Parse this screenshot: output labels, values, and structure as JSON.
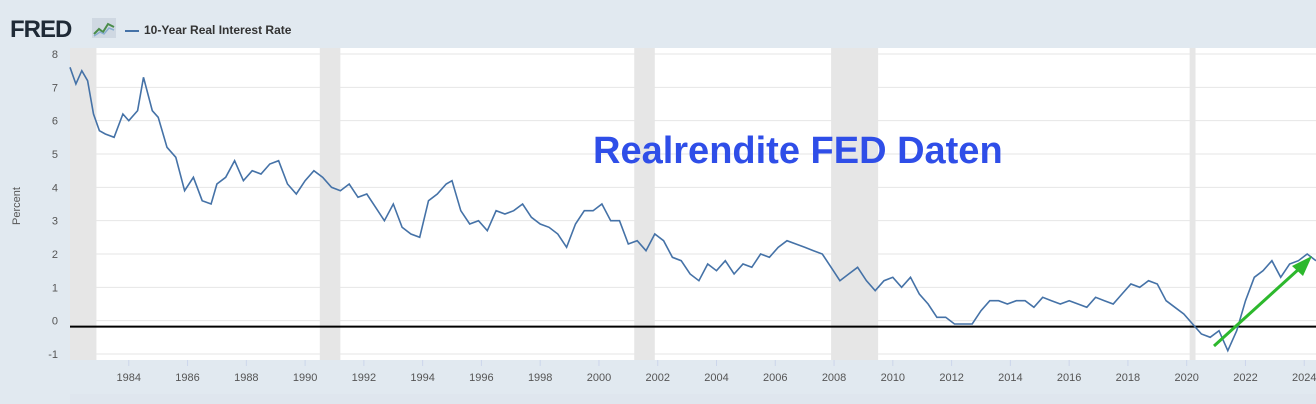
{
  "header": {
    "logo_text": "FRED",
    "logo_icon": "fred-chart-icon",
    "series_label": "10-Year Real Interest Rate"
  },
  "annotation": {
    "text": "Realrendite FED Daten",
    "color": "#2f4ee8",
    "arrow_color": "#2db82d"
  },
  "colors": {
    "line": "#4572a7",
    "recession": "#e6e6e6",
    "zero_line": "#000000"
  },
  "chart_data": {
    "type": "line",
    "title": "",
    "ylabel": "Percent",
    "xlabel": "",
    "ylim": [
      -1,
      8
    ],
    "xlim": [
      1982.0,
      2024.4
    ],
    "y_ticks": [
      "-1",
      "0",
      "1",
      "2",
      "3",
      "4",
      "5",
      "6",
      "7",
      "8"
    ],
    "x_ticks": [
      "1984",
      "1986",
      "1988",
      "1990",
      "1992",
      "1994",
      "1996",
      "1998",
      "2000",
      "2002",
      "2004",
      "2006",
      "2008",
      "2010",
      "2012",
      "2014",
      "2016",
      "2018",
      "2020",
      "2022",
      "2024"
    ],
    "zero_reference_line": 0,
    "recessions": [
      [
        1982.0,
        1982.9
      ],
      [
        1990.5,
        1991.2
      ],
      [
        2001.2,
        2001.9
      ],
      [
        2007.9,
        2009.5
      ],
      [
        2020.1,
        2020.3
      ]
    ],
    "series": [
      {
        "name": "10-Year Real Interest Rate",
        "x": [
          1982.0,
          1982.2,
          1982.4,
          1982.6,
          1982.8,
          1983.0,
          1983.2,
          1983.5,
          1983.8,
          1984.0,
          1984.3,
          1984.5,
          1984.8,
          1985.0,
          1985.3,
          1985.6,
          1985.9,
          1986.2,
          1986.5,
          1986.8,
          1987.0,
          1987.3,
          1987.6,
          1987.9,
          1988.2,
          1988.5,
          1988.8,
          1989.1,
          1989.4,
          1989.7,
          1990.0,
          1990.3,
          1990.6,
          1990.9,
          1991.2,
          1991.5,
          1991.8,
          1992.1,
          1992.4,
          1992.7,
          1993.0,
          1993.3,
          1993.6,
          1993.9,
          1994.2,
          1994.5,
          1994.8,
          1995.0,
          1995.3,
          1995.6,
          1995.9,
          1996.2,
          1996.5,
          1996.8,
          1997.1,
          1997.4,
          1997.7,
          1998.0,
          1998.3,
          1998.6,
          1998.9,
          1999.2,
          1999.5,
          1999.8,
          2000.1,
          2000.4,
          2000.7,
          2001.0,
          2001.3,
          2001.6,
          2001.9,
          2002.2,
          2002.5,
          2002.8,
          2003.1,
          2003.4,
          2003.7,
          2004.0,
          2004.3,
          2004.6,
          2004.9,
          2005.2,
          2005.5,
          2005.8,
          2006.1,
          2006.4,
          2006.7,
          2007.0,
          2007.3,
          2007.6,
          2007.9,
          2008.2,
          2008.5,
          2008.8,
          2009.1,
          2009.4,
          2009.7,
          2010.0,
          2010.3,
          2010.6,
          2010.9,
          2011.2,
          2011.5,
          2011.8,
          2012.1,
          2012.4,
          2012.7,
          2013.0,
          2013.3,
          2013.6,
          2013.9,
          2014.2,
          2014.5,
          2014.8,
          2015.1,
          2015.4,
          2015.7,
          2016.0,
          2016.3,
          2016.6,
          2016.9,
          2017.2,
          2017.5,
          2017.8,
          2018.1,
          2018.4,
          2018.7,
          2019.0,
          2019.3,
          2019.6,
          2019.9,
          2020.2,
          2020.5,
          2020.8,
          2021.1,
          2021.4,
          2021.7,
          2022.0,
          2022.3,
          2022.6,
          2022.9,
          2023.2,
          2023.5,
          2023.8,
          2024.1,
          2024.4
        ],
        "values": [
          7.6,
          7.1,
          7.5,
          7.2,
          6.2,
          5.7,
          5.6,
          5.5,
          6.2,
          6.0,
          6.3,
          7.3,
          6.3,
          6.1,
          5.2,
          4.9,
          3.9,
          4.3,
          3.6,
          3.5,
          4.1,
          4.3,
          4.8,
          4.2,
          4.5,
          4.4,
          4.7,
          4.8,
          4.1,
          3.8,
          4.2,
          4.5,
          4.3,
          4.0,
          3.9,
          4.1,
          3.7,
          3.8,
          3.4,
          3.0,
          3.5,
          2.8,
          2.6,
          2.5,
          3.6,
          3.8,
          4.1,
          4.2,
          3.3,
          2.9,
          3.0,
          2.7,
          3.3,
          3.2,
          3.3,
          3.5,
          3.1,
          2.9,
          2.8,
          2.6,
          2.2,
          2.9,
          3.3,
          3.3,
          3.5,
          3.0,
          3.0,
          2.3,
          2.4,
          2.1,
          2.6,
          2.4,
          1.9,
          1.8,
          1.4,
          1.2,
          1.7,
          1.5,
          1.8,
          1.4,
          1.7,
          1.6,
          2.0,
          1.9,
          2.2,
          2.4,
          2.3,
          2.2,
          2.1,
          2.0,
          1.6,
          1.2,
          1.4,
          1.6,
          1.2,
          0.9,
          1.2,
          1.3,
          1.0,
          1.3,
          0.8,
          0.5,
          0.1,
          0.1,
          -0.1,
          -0.1,
          -0.1,
          0.3,
          0.6,
          0.6,
          0.5,
          0.6,
          0.6,
          0.4,
          0.7,
          0.6,
          0.5,
          0.6,
          0.5,
          0.4,
          0.7,
          0.6,
          0.5,
          0.8,
          1.1,
          1.0,
          1.2,
          1.1,
          0.6,
          0.4,
          0.2,
          -0.1,
          -0.4,
          -0.5,
          -0.3,
          -0.9,
          -0.3,
          0.6,
          1.3,
          1.5,
          1.8,
          1.3,
          1.7,
          1.8,
          2.0,
          1.8
        ]
      }
    ]
  }
}
